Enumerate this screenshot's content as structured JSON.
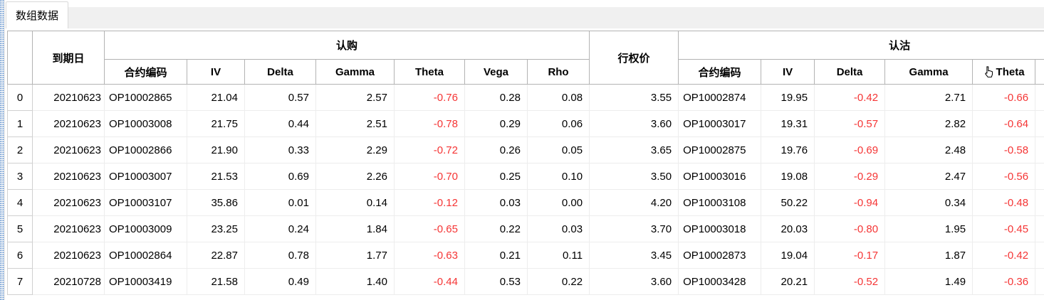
{
  "panel": {
    "tab_label": "数组数据"
  },
  "table": {
    "group_headers": {
      "call": "认购",
      "put": "认沽"
    },
    "column_headers": {
      "expiry": "到期日",
      "strike": "行权价",
      "code": "合约编码",
      "iv": "IV",
      "delta": "Delta",
      "gamma": "Gamma",
      "theta": "Theta",
      "vega": "Vega",
      "rho": "Rho"
    },
    "icons": {
      "put_theta_header_cursor": "hand-cursor-icon"
    },
    "rows": [
      {
        "index": "0",
        "expiry": "20210623",
        "call_code": "OP10002865",
        "call_iv": "21.04",
        "call_delta": "0.57",
        "call_gamma": "2.57",
        "call_theta": "-0.76",
        "call_vega": "0.28",
        "call_rho": "0.08",
        "strike": "3.55",
        "put_code": "OP10002874",
        "put_iv": "19.95",
        "put_delta": "-0.42",
        "put_gamma": "2.71",
        "put_theta": "-0.66"
      },
      {
        "index": "1",
        "expiry": "20210623",
        "call_code": "OP10003008",
        "call_iv": "21.75",
        "call_delta": "0.44",
        "call_gamma": "2.51",
        "call_theta": "-0.78",
        "call_vega": "0.29",
        "call_rho": "0.06",
        "strike": "3.60",
        "put_code": "OP10003017",
        "put_iv": "19.31",
        "put_delta": "-0.57",
        "put_gamma": "2.82",
        "put_theta": "-0.64"
      },
      {
        "index": "2",
        "expiry": "20210623",
        "call_code": "OP10002866",
        "call_iv": "21.90",
        "call_delta": "0.33",
        "call_gamma": "2.29",
        "call_theta": "-0.72",
        "call_vega": "0.26",
        "call_rho": "0.05",
        "strike": "3.65",
        "put_code": "OP10002875",
        "put_iv": "19.76",
        "put_delta": "-0.69",
        "put_gamma": "2.48",
        "put_theta": "-0.58"
      },
      {
        "index": "3",
        "expiry": "20210623",
        "call_code": "OP10003007",
        "call_iv": "21.53",
        "call_delta": "0.69",
        "call_gamma": "2.26",
        "call_theta": "-0.70",
        "call_vega": "0.25",
        "call_rho": "0.10",
        "strike": "3.50",
        "put_code": "OP10003016",
        "put_iv": "19.08",
        "put_delta": "-0.29",
        "put_gamma": "2.47",
        "put_theta": "-0.56"
      },
      {
        "index": "4",
        "expiry": "20210623",
        "call_code": "OP10003107",
        "call_iv": "35.86",
        "call_delta": "0.01",
        "call_gamma": "0.14",
        "call_theta": "-0.12",
        "call_vega": "0.03",
        "call_rho": "0.00",
        "strike": "4.20",
        "put_code": "OP10003108",
        "put_iv": "50.22",
        "put_delta": "-0.94",
        "put_gamma": "0.34",
        "put_theta": "-0.48"
      },
      {
        "index": "5",
        "expiry": "20210623",
        "call_code": "OP10003009",
        "call_iv": "23.25",
        "call_delta": "0.24",
        "call_gamma": "1.84",
        "call_theta": "-0.65",
        "call_vega": "0.22",
        "call_rho": "0.03",
        "strike": "3.70",
        "put_code": "OP10003018",
        "put_iv": "20.03",
        "put_delta": "-0.80",
        "put_gamma": "1.95",
        "put_theta": "-0.45"
      },
      {
        "index": "6",
        "expiry": "20210623",
        "call_code": "OP10002864",
        "call_iv": "22.87",
        "call_delta": "0.78",
        "call_gamma": "1.77",
        "call_theta": "-0.63",
        "call_vega": "0.21",
        "call_rho": "0.11",
        "strike": "3.45",
        "put_code": "OP10002873",
        "put_iv": "19.04",
        "put_delta": "-0.17",
        "put_gamma": "1.87",
        "put_theta": "-0.42"
      },
      {
        "index": "7",
        "expiry": "20210728",
        "call_code": "OP10003419",
        "call_iv": "21.58",
        "call_delta": "0.49",
        "call_gamma": "1.40",
        "call_theta": "-0.44",
        "call_vega": "0.53",
        "call_rho": "0.22",
        "strike": "3.60",
        "put_code": "OP10003428",
        "put_iv": "20.21",
        "put_delta": "-0.52",
        "put_gamma": "1.49",
        "put_theta": "-0.36"
      }
    ]
  },
  "colors": {
    "negative_value": "#f53535",
    "header_border": "#b3b3b3",
    "grid_line": "#ededed",
    "rowhdr_border": "#d0d0d0",
    "tabbar_background": "#f0f0f0",
    "dock_handle_dots": "#5d8fcc"
  }
}
